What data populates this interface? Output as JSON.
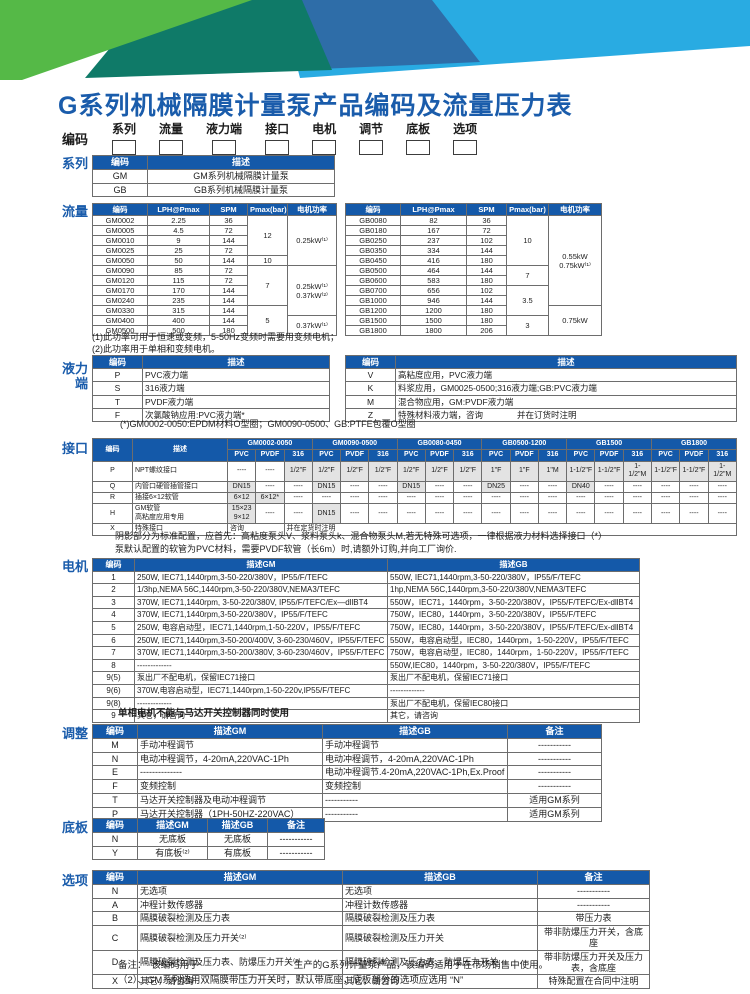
{
  "page": {
    "title": "G系列机械隔膜计量泵产品编码及流量压力表"
  },
  "colors": {
    "header_blue": "#1459a9",
    "title_blue": "#1a5cab",
    "green": "#55b947",
    "teal": "#0f7a68",
    "dark_blue": "#2e6da8",
    "light_blue": "#29abe2"
  },
  "coding": {
    "label": "编码",
    "fields": [
      "系列",
      "流量",
      "液力端",
      "接口",
      "电机",
      "调节",
      "底板",
      "选项"
    ]
  },
  "series": {
    "label": "系列",
    "headers": [
      "编码",
      "描述"
    ],
    "rows": [
      [
        "GM",
        "GM系列机械隔膜计量泵"
      ],
      [
        "GB",
        "GB系列机械隔膜计量泵"
      ]
    ]
  },
  "flow": {
    "label": "流量",
    "gm": {
      "headers": [
        "编码",
        "LPH@Pmax",
        "SPM",
        "Pmax(bar)",
        "电机功率"
      ],
      "rows": [
        [
          "GM0002",
          "2.25",
          "36",
          {
            "t": "12",
            "rs": 4
          },
          {
            "t": "0.25kW⁽¹⁾",
            "rs": 5
          }
        ],
        [
          "GM0005",
          "4.5",
          "72"
        ],
        [
          "GM0010",
          "9",
          "144"
        ],
        [
          "GM0025",
          "25",
          "72"
        ],
        [
          "GM0050",
          "50",
          "144",
          "10"
        ],
        [
          "GM0090",
          "85",
          "72",
          {
            "t": "7",
            "rs": 4
          },
          {
            "t": "0.25kW⁽¹⁾\n0.37kW⁽²⁾",
            "rs": 5
          }
        ],
        [
          "GM0120",
          "115",
          "72"
        ],
        [
          "GM0170",
          "170",
          "144"
        ],
        [
          "GM0240",
          "235",
          "144"
        ],
        [
          "GM0330",
          "315",
          "144",
          {
            "t": "5",
            "rs": 3
          }
        ],
        [
          "GM0400",
          "400",
          "144",
          {
            "t": "0.37kW⁽¹⁾",
            "rs": 2
          }
        ],
        [
          "GM0500",
          "500",
          "180"
        ]
      ]
    },
    "gb": {
      "headers": [
        "编码",
        "LPH@Pmax",
        "SPM",
        "Pmax(bar)",
        "电机功率"
      ],
      "rows": [
        [
          "GB0080",
          "82",
          "36",
          {
            "t": "10",
            "rs": 5
          },
          {
            "t": "0.55kW\n0.75kW⁽¹⁾",
            "rs": 9
          }
        ],
        [
          "GB0180",
          "167",
          "72"
        ],
        [
          "GB0250",
          "237",
          "102"
        ],
        [
          "GB0350",
          "334",
          "144"
        ],
        [
          "GB0450",
          "416",
          "180"
        ],
        [
          "GB0500",
          "464",
          "144",
          {
            "t": "7",
            "rs": 2
          }
        ],
        [
          "GB0600",
          "583",
          "180"
        ],
        [
          "GB0700",
          "656",
          "102",
          {
            "t": "3.5",
            "rs": 3
          }
        ],
        [
          "GB1000",
          "946",
          "144"
        ],
        [
          "GB1200",
          "1200",
          "180",
          {
            "t": "0.75kW",
            "rs": 3
          }
        ],
        [
          "GB1500",
          "1500",
          "180",
          {
            "t": "3",
            "rs": 2
          }
        ],
        [
          "GB1800",
          "1800",
          "206"
        ]
      ]
    },
    "notes": [
      "(1)此功率可用于恒速或变频，5-50Hz变频时需要用变频电机；",
      "(2)此功率用于单相和变频电机。"
    ]
  },
  "hydraulic": {
    "label": "液力\n端",
    "left": {
      "headers": [
        "编码",
        "描述"
      ],
      "rows": [
        [
          "P",
          "PVC液力端"
        ],
        [
          "S",
          "316液力端"
        ],
        [
          "T",
          "PVDF液力端"
        ],
        [
          "F",
          "次氯酸钠应用:PVC液力端*"
        ]
      ]
    },
    "right": {
      "headers": [
        "编码",
        "描述"
      ],
      "rows": [
        [
          "V",
          "高粘度应用，PVC液力端"
        ],
        [
          "K",
          "料浆应用，GM0025-0500;316液力端;GB:PVC液力端"
        ],
        [
          "M",
          "混合物应用，GM:PVDF液力端"
        ],
        [
          "Z",
          "特殊材料液力端，咨询　　　　并在订货时注明"
        ]
      ]
    },
    "note": "(*)GM0002-0050:EPDM材料O型圈；GM0090-0500、GB:PTFE包覆O型圈"
  },
  "interface": {
    "label": "接口",
    "header_rows": [
      [
        {
          "t": "编码",
          "rs": 2
        },
        {
          "t": "描述",
          "rs": 2
        },
        {
          "t": "GM0002-0050",
          "cs": 3
        },
        {
          "t": "GM0090-0500",
          "cs": 3
        },
        {
          "t": "GB0080-0450",
          "cs": 3
        },
        {
          "t": "GB0500-1200",
          "cs": 3
        },
        {
          "t": "GB1500",
          "cs": 3
        },
        {
          "t": "GB1800",
          "cs": 3
        }
      ],
      [
        "PVC",
        "PVDF",
        "316",
        "PVC",
        "PVDF",
        "316",
        "PVC",
        "PVDF",
        "316",
        "PVC",
        "PVDF",
        "316",
        "PVC",
        "PVDF",
        "316",
        "PVC",
        "PVDF",
        "316"
      ]
    ],
    "rows": [
      [
        "P",
        "NPT螺纹接口",
        "----",
        "----",
        "1/2\"F",
        "1/2\"F",
        "1/2\"F",
        "1/2\"F",
        "1/2\"F",
        "1/2\"F",
        "1/2\"F",
        "1\"F",
        "1\"F",
        "1\"M",
        "1-1/2\"F",
        "1-1/2\"F",
        "1-1/2\"M",
        "1-1/2\"F",
        "1-1/2\"F",
        "1-1/2\"M"
      ],
      [
        "Q",
        "内管口硬管插管接口",
        "DN15",
        "----",
        "----",
        "DN15",
        "----",
        "----",
        "DN15",
        "----",
        "----",
        "DN25",
        "----",
        "----",
        "DN40",
        "----",
        "----",
        "----",
        "----",
        "----"
      ],
      [
        "R",
        "插接6×12软管",
        "6×12",
        "6×12*",
        "----",
        "----",
        "----",
        "----",
        "----",
        "----",
        "----",
        "----",
        "----",
        "----",
        "----",
        "----",
        "----",
        "----",
        "----",
        "----"
      ],
      [
        "H",
        "GM软管\n高粘度应用专用",
        "15×23\n9×12",
        "----",
        "----",
        "DN15",
        "----",
        "----",
        "----",
        "----",
        "----",
        "----",
        "----",
        "----",
        "----",
        "----",
        "----",
        "----",
        "----",
        "----"
      ],
      [
        "X",
        "特殊接口",
        {
          "t": "咨询",
          "cs": 2,
          "al": "l"
        },
        {
          "t": "并在定货时注明",
          "cs": 16,
          "al": "l"
        }
      ]
    ],
    "notes": [
      "阴影部分为标准配置，应首先：高粘度泵头V、浆料泵头k、混合物泵头M,若无特殊可选项，一律根据液力材料选择接口（*）",
      "泵默认配置的软管为PVC材料，需要PVDF软管（长6m）时,请额外订购,并向工厂询价."
    ]
  },
  "motor": {
    "label": "电机",
    "headers": [
      "编码",
      "描述GM",
      "描述GB"
    ],
    "rows": [
      [
        "1",
        "250W, IEC71,1440rpm,3-50-220/380V，IP55/F/TEFC",
        "550W, IEC71,1440rpm,3-50-220/380V，IP55/F/TEFC"
      ],
      [
        "2",
        "1/3hp,NEMA 56C,1440rpm,3-50-220/380V,NEMA3/TEFC",
        "1hp,NEMA 56C,1440rpm,3-50-220/380V,NEMA3/TEFC"
      ],
      [
        "3",
        "370W, IEC71,1440rpm, 3-50-220/380V, IP55/F/TEFC/Ex—dllBT4",
        "550W，IEC71，1440rpm，3-50-220/380V，IP55/F/TEFC/Ex-dllBT4"
      ],
      [
        "4",
        "370W, IEC71,1440rpm,3-50-220/380V，IP55/F/TEFC",
        "750W，IEC80，1440rpm，3-50-220/380V，IP55/F/TEFC"
      ],
      [
        "5",
        "250W, 电容启动型，IEC71,1440rpm,1-50-220V，IP55/F/TEFC",
        "750W，IEC80，1440rpm，3-50-220/380V，IP55/F/TEFC/Ex-dllBT4"
      ],
      [
        "6",
        "250W, IEC71,1440rpm,3-50-200/400V, 3-60-230/460V，IP55/F/TEFC",
        "550W，电容启动型，IEC80，1440rpm，1-50-220V，IP55/F/TEFC"
      ],
      [
        "7",
        "370W, IEC71,1440rpm,3-50-200/380V, 3-60-230/460V，IP55/F/TEFC",
        "750W，电容启动型，IEC80，1440rpm，1-50-220V，IP55/F/TEFC"
      ],
      [
        "8",
        "-------------",
        "550W,IEC80，1440rpm，3-50-220/380V，IP55/F/TEFC"
      ],
      [
        "9(5)",
        "泵出厂不配电机，保留IEC71接口",
        "泵出厂不配电机，保留IEC71接口"
      ],
      [
        "9(6)",
        "370W,电容启动型，IEC71,1440rpm,1-50-220v,IP55/F/TEFC",
        "-------------"
      ],
      [
        "9(8)",
        "-------------",
        "泵出厂不配电机，保留IEC80接口"
      ],
      [
        "9",
        "其它，请咨询",
        "其它，请咨询"
      ]
    ],
    "note": "单相电机不能与马达开关控制器同时使用"
  },
  "adjust": {
    "label": "调整",
    "headers": [
      "编码",
      "描述GM",
      "描述GB",
      "备注"
    ],
    "rows": [
      [
        "M",
        "手动冲程调节",
        "手动冲程调节",
        "-----------"
      ],
      [
        "N",
        "电动冲程调节，4-20mA,220VAC-1Ph",
        "电动冲程调节，4-20mA,220VAC-1Ph",
        "-----------"
      ],
      [
        "E",
        "--------------",
        "电动冲程调节.4-20mA,220VAC-1Ph,Ex.Proof",
        "-----------"
      ],
      [
        "F",
        "变频控制",
        "变频控制",
        "-----------"
      ],
      [
        "T",
        "马达开关控制器及电动冲程调节",
        "-----------",
        "适用GM系列"
      ],
      [
        "P",
        "马达开关控制器（1PH-50HZ-220VAC）",
        "-----------",
        "适用GM系列"
      ]
    ]
  },
  "base": {
    "label": "底板",
    "headers": [
      "编码",
      "描述GM",
      "描述GB",
      "备注"
    ],
    "rows": [
      [
        "N",
        "无底板",
        "无底板",
        "-----------"
      ],
      [
        "Y",
        "有底板⁽²⁾",
        "有底板",
        "-----------"
      ]
    ]
  },
  "options": {
    "label": "选项",
    "headers": [
      "编码",
      "描述GM",
      "描述GB",
      "备注"
    ],
    "rows": [
      [
        "N",
        "无选项",
        "无选项",
        "-----------"
      ],
      [
        "A",
        "冲程计数传感器",
        "冲程计数传感器",
        "-----------"
      ],
      [
        "B",
        "隔膜破裂检测及压力表",
        "隔膜破裂检测及压力表",
        "带压力表"
      ],
      [
        "C",
        "隔膜破裂检测及压力开关⁽²⁾",
        "隔膜破裂检测及压力开关",
        "带非防爆压力开关，含底座"
      ],
      [
        "D",
        "隔膜破裂检测及压力表、防爆压力开关⁽²⁾",
        "隔膜破裂检测及压力表、防爆压力开关",
        "带非防爆压力开关及压力表，含底座"
      ],
      [
        "X",
        "其它，请咨询",
        "其它，请咨询",
        "特殊配置在合同中注明"
      ]
    ],
    "notes": [
      "备注：　该编码用于　　　　　　　　　　生产的G系列计量泵产品，该编码适用于在市场销售中使用。",
      "（2）、GM系列选用双隔膜带压力开关时，默认带底座，底板部分的选项应选用 “N”"
    ]
  }
}
